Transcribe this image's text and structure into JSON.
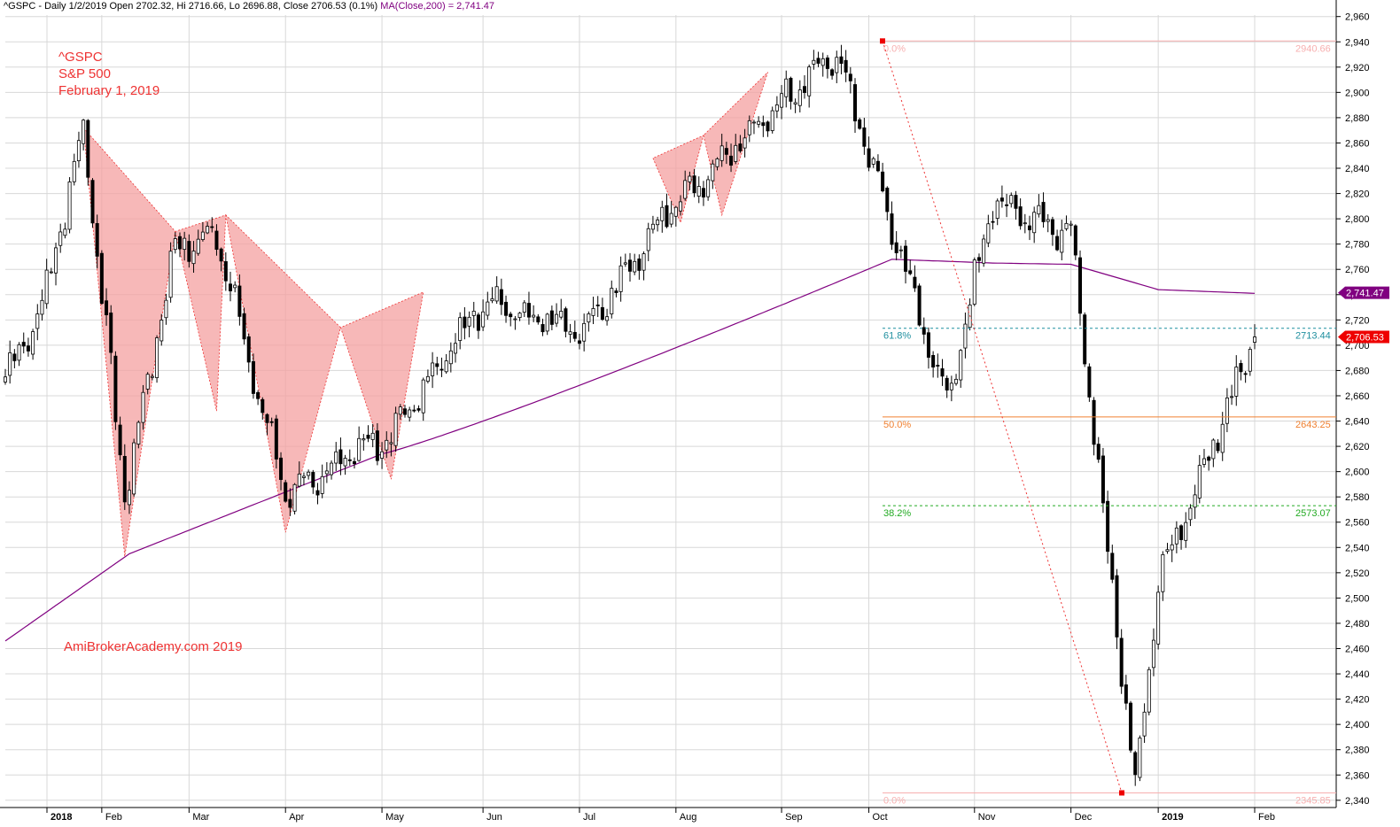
{
  "header": {
    "symbol_line": "^GSPC - Daily 1/2/2019 Open 2702.32, Hi 2716.66, Lo 2696.88, Close 2706.53 (0.1%)",
    "ma_line": "MA(Close,200) = 2,741.47"
  },
  "annotation": {
    "ticker": "^GSPC",
    "name": "S&P 500",
    "date": "February 1, 2019"
  },
  "watermark": "AmiBrokerAcademy.com  2019",
  "colors": {
    "candle": "#000000",
    "ma": "#800080",
    "pattern_fill": "#f4a0a0",
    "pattern_line": "#ee3333",
    "fib_100": "#f7b0b0",
    "fib_618": "#1f8f9f",
    "fib_500": "#f08030",
    "fib_382": "#22aa22",
    "grid": "#d8d8d8"
  },
  "chart_data": {
    "type": "candlestick",
    "x_axis_labels": [
      "2018",
      "Feb",
      "Mar",
      "Apr",
      "May",
      "Jun",
      "Jul",
      "Aug",
      "Sep",
      "Oct",
      "Nov",
      "Dec",
      "2019",
      "Feb"
    ],
    "y_ticks": [
      "2,340",
      "2,360",
      "2,380",
      "2,400",
      "2,420",
      "2,440",
      "2,460",
      "2,480",
      "2,500",
      "2,520",
      "2,540",
      "2,560",
      "2,580",
      "2,600",
      "2,620",
      "2,640",
      "2,660",
      "2,680",
      "2,700",
      "2,720",
      "2,740",
      "2,760",
      "2,780",
      "2,800",
      "2,820",
      "2,840",
      "2,860",
      "2,880",
      "2,900",
      "2,920",
      "2,940",
      "2,960"
    ],
    "ylim": [
      2335,
      2970
    ],
    "approx_close_path": [
      {
        "d": "2018-01-02",
        "c": 2675
      },
      {
        "d": "2018-01-12",
        "c": 2730
      },
      {
        "d": "2018-01-26",
        "c": 2872
      },
      {
        "d": "2018-02-08",
        "c": 2581
      },
      {
        "d": "2018-02-26",
        "c": 2779
      },
      {
        "d": "2018-03-09",
        "c": 2786
      },
      {
        "d": "2018-04-02",
        "c": 2582
      },
      {
        "d": "2018-05-03",
        "c": 2630
      },
      {
        "d": "2018-06-01",
        "c": 2734
      },
      {
        "d": "2018-07-03",
        "c": 2713
      },
      {
        "d": "2018-08-01",
        "c": 2814
      },
      {
        "d": "2018-09-20",
        "c": 2930
      },
      {
        "d": "2018-10-24",
        "c": 2656
      },
      {
        "d": "2018-11-07",
        "c": 2813
      },
      {
        "d": "2018-12-03",
        "c": 2790
      },
      {
        "d": "2018-12-24",
        "c": 2351
      },
      {
        "d": "2019-01-02",
        "c": 2510
      },
      {
        "d": "2019-02-01",
        "c": 2706.53
      }
    ],
    "last_candle": {
      "label": "1/2/2019",
      "open": 2702.32,
      "high": 2716.66,
      "low": 2696.88,
      "close": 2706.53
    },
    "ma200": {
      "label": "MA(Close,200)",
      "last": 2741.47,
      "last_label": "2,741.47"
    },
    "last_close_label": "2,706.53",
    "fibonacci": [
      {
        "pct": "0.0%",
        "value": 2940.66,
        "value_label": "2940.66"
      },
      {
        "pct": "61.8%",
        "value": 2713.44,
        "value_label": "2713.44"
      },
      {
        "pct": "50.0%",
        "value": 2643.25,
        "value_label": "2643.25"
      },
      {
        "pct": "38.2%",
        "value": 2573.07,
        "value_label": "2573.07"
      },
      {
        "pct": "0.0%",
        "value": 2345.85,
        "value_label": "2345.85"
      }
    ]
  }
}
